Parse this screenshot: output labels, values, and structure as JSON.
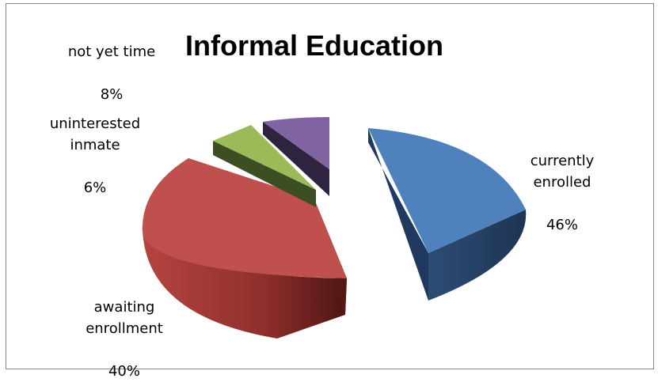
{
  "chart_data": {
    "type": "pie",
    "title": "Informal Education",
    "slices": [
      {
        "label": "currently\nenrolled",
        "percent_label": "46%",
        "value": 46,
        "color": "#4f81bd"
      },
      {
        "label": "awaiting\nenrollment",
        "percent_label": "40%",
        "value": 40,
        "color": "#c0504d"
      },
      {
        "label": "uninterested\ninmate",
        "percent_label": "6%",
        "value": 6,
        "color": "#9bbb59"
      },
      {
        "label": "not yet time",
        "percent_label": "8%",
        "value": 8,
        "color": "#8064a2"
      }
    ],
    "style": "3d-exploded"
  }
}
